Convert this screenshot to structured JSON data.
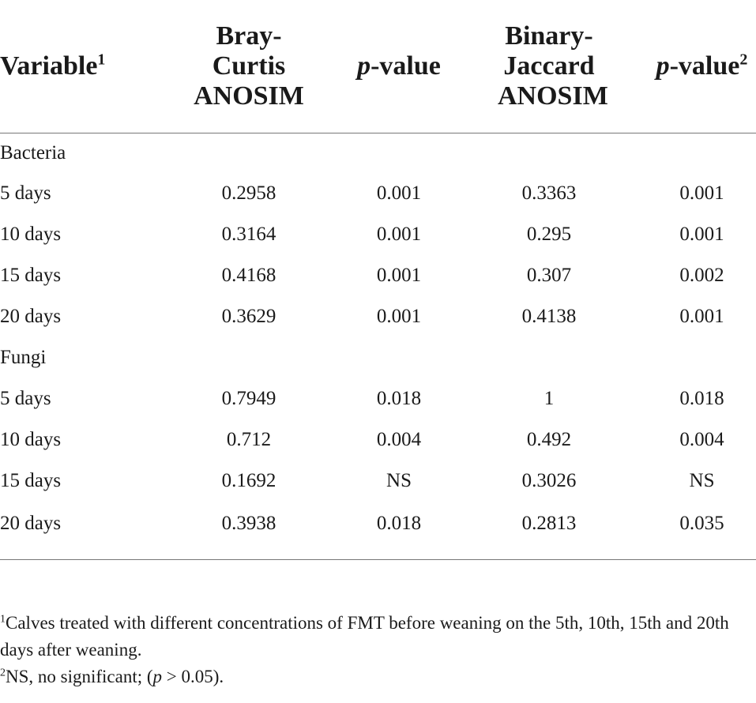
{
  "table": {
    "headers": {
      "variable": "Variable",
      "variable_sup": "1",
      "bray_curtis": "Bray-Curtis ANOSIM",
      "p_value_1_italic": "p",
      "p_value_1_rest": "-value",
      "binary_jaccard": "Binary-Jaccard ANOSIM",
      "p_value_2_italic": "p",
      "p_value_2_rest": "-value",
      "p_value_2_sup": "2"
    },
    "groups": [
      {
        "name": "Bacteria",
        "rows": [
          {
            "variable": "5 days",
            "bray_curtis": "0.2958",
            "p1": "0.001",
            "jaccard": "0.3363",
            "p2": "0.001"
          },
          {
            "variable": "10 days",
            "bray_curtis": "0.3164",
            "p1": "0.001",
            "jaccard": "0.295",
            "p2": "0.001"
          },
          {
            "variable": "15 days",
            "bray_curtis": "0.4168",
            "p1": "0.001",
            "jaccard": "0.307",
            "p2": "0.002"
          },
          {
            "variable": "20 days",
            "bray_curtis": "0.3629",
            "p1": "0.001",
            "jaccard": "0.4138",
            "p2": "0.001"
          }
        ]
      },
      {
        "name": "Fungi",
        "rows": [
          {
            "variable": "5 days",
            "bray_curtis": "0.7949",
            "p1": "0.018",
            "jaccard": "1",
            "p2": "0.018"
          },
          {
            "variable": "10 days",
            "bray_curtis": "0.712",
            "p1": "0.004",
            "jaccard": "0.492",
            "p2": "0.004"
          },
          {
            "variable": "15 days",
            "bray_curtis": "0.1692",
            "p1": "NS",
            "jaccard": "0.3026",
            "p2": "NS"
          },
          {
            "variable": "20 days",
            "bray_curtis": "0.3938",
            "p1": "0.018",
            "jaccard": "0.2813",
            "p2": "0.035"
          }
        ]
      }
    ]
  },
  "footnotes": {
    "note1_sup": "1",
    "note1_text": "Calves treated with different concentrations of FMT before weaning on the 5th, 10th, 15th and 20th days after weaning.",
    "note2_sup": "2",
    "note2_text_a": "NS, no significant; (",
    "note2_italic": "p",
    "note2_text_b": " > 0.05)."
  }
}
